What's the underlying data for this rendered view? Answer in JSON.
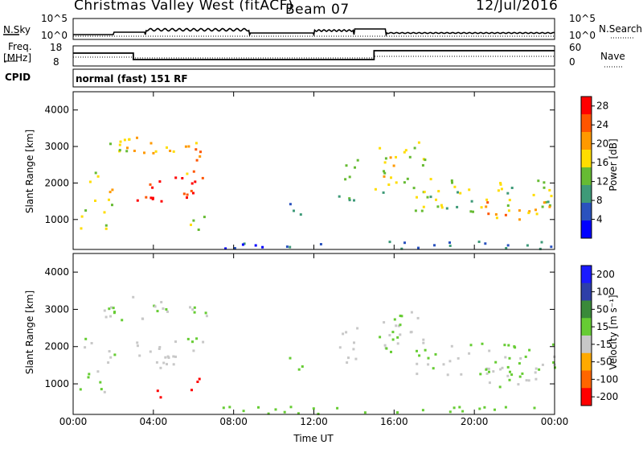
{
  "header": {
    "station": "Christmas Valley West (fitACF)",
    "beam": "Beam 07",
    "date": "12/Jul/2016"
  },
  "param_panels": {
    "nsky_label": "N.Sky",
    "nsky_ticks": [
      "10^5",
      "10^0"
    ],
    "nsearch_label": "N.Search",
    "nsearch_ticks": [
      "10^5",
      "10^0"
    ],
    "freq_label_1": "Freq.",
    "freq_label_2": "[MHz]",
    "freq_ticks": [
      "18",
      "8"
    ],
    "nave_label": "Nave",
    "nave_ticks": [
      "60",
      "0"
    ],
    "cpid_label": "CPID",
    "cpid_value": "normal (fast) 151 RF"
  },
  "colors": {
    "power_scale": [
      "#0000ff",
      "#2a52be",
      "#3e9a78",
      "#66bb33",
      "#ffdd00",
      "#ff9900",
      "#ff5500",
      "#ff0000"
    ],
    "velocity_scale": [
      "#1a1aff",
      "#2e3fa8",
      "#3a8a3a",
      "#66cc33",
      "#c8c8c8",
      "#ffaa00",
      "#ff6600",
      "#ff0000"
    ],
    "axis": "#000000"
  },
  "chart_data": [
    {
      "type": "heatmap",
      "name": "power",
      "ylabel": "Slant Range [km]",
      "yticks": [
        "4000",
        "3000",
        "2000",
        "1000"
      ],
      "ylim": [
        180,
        4500
      ],
      "xlim": [
        "00:00",
        "24:00"
      ],
      "colorbar_label": "Power [dB]",
      "colorbar_ticks": [
        "28",
        "24",
        "20",
        "16",
        "12",
        "8",
        "4"
      ],
      "colorbar_range": [
        0,
        30
      ],
      "regions": [
        {
          "t0": 0.2,
          "t1": 1.2,
          "r0": 1900,
          "r1": 2300,
          "v": 15
        },
        {
          "t0": 0.3,
          "t1": 1.6,
          "r0": 700,
          "r1": 1300,
          "v": 16
        },
        {
          "t0": 1.0,
          "t1": 2.1,
          "r0": 1300,
          "r1": 1900,
          "v": 18
        },
        {
          "t0": 1.3,
          "t1": 3.0,
          "r0": 2700,
          "r1": 3500,
          "v": 17
        },
        {
          "t0": 3.0,
          "t1": 5.1,
          "r0": 2700,
          "r1": 3300,
          "v": 18
        },
        {
          "t0": 3.0,
          "t1": 6.2,
          "r0": 1400,
          "r1": 2200,
          "v": 27
        },
        {
          "t0": 5.5,
          "t1": 6.8,
          "r0": 2000,
          "r1": 3100,
          "v": 22
        },
        {
          "t0": 5.8,
          "t1": 6.7,
          "r0": 600,
          "r1": 1200,
          "v": 14
        },
        {
          "t0": 7.0,
          "t1": 24.0,
          "r0": 180,
          "r1": 380,
          "v": 7
        },
        {
          "t0": 10.7,
          "t1": 11.4,
          "r0": 1100,
          "r1": 1700,
          "v": 10
        },
        {
          "t0": 13.2,
          "t1": 14.2,
          "r0": 1400,
          "r1": 2700,
          "v": 11
        },
        {
          "t0": 15.0,
          "t1": 16.0,
          "r0": 1700,
          "r1": 2300,
          "v": 13
        },
        {
          "t0": 15.2,
          "t1": 17.5,
          "r0": 1800,
          "r1": 3100,
          "v": 15
        },
        {
          "t0": 17.0,
          "t1": 24.0,
          "r0": 1200,
          "r1": 2100,
          "v": 14
        },
        {
          "t0": 20.5,
          "t1": 24.0,
          "r0": 900,
          "r1": 1500,
          "v": 21
        }
      ]
    },
    {
      "type": "heatmap",
      "name": "velocity",
      "ylabel": "Slant Range [km]",
      "yticks": [
        "4000",
        "3000",
        "2000",
        "1000"
      ],
      "xlabel": "Time UT",
      "xticks": [
        "00:00",
        "04:00",
        "08:00",
        "12:00",
        "16:00",
        "20:00",
        "00:00"
      ],
      "xlim": [
        "00:00",
        "24:00"
      ],
      "ylim": [
        180,
        4500
      ],
      "colorbar_label": "Velocity [m s⁻¹]",
      "colorbar_ticks": [
        "200",
        "100",
        "50",
        "15",
        "-15",
        "-50",
        "-100",
        "-200"
      ],
      "colorbar_range": [
        -250,
        250
      ],
      "regions": [
        {
          "t0": 0.2,
          "t1": 1.2,
          "r0": 1900,
          "r1": 2300,
          "v": 0
        },
        {
          "t0": 0.3,
          "t1": 1.6,
          "r0": 700,
          "r1": 1300,
          "v": 5
        },
        {
          "t0": 1.0,
          "t1": 2.1,
          "r0": 1300,
          "r1": 1900,
          "v": 0
        },
        {
          "t0": 1.3,
          "t1": 3.0,
          "r0": 2700,
          "r1": 3500,
          "v": 0
        },
        {
          "t0": 3.0,
          "t1": 5.1,
          "r0": 2700,
          "r1": 3300,
          "v": -5
        },
        {
          "t0": 3.0,
          "t1": 6.2,
          "r0": 1400,
          "r1": 2200,
          "v": -40
        },
        {
          "t0": 5.5,
          "t1": 6.8,
          "r0": 2000,
          "r1": 3100,
          "v": 0
        },
        {
          "t0": 4.0,
          "t1": 5.0,
          "r0": 600,
          "r1": 900,
          "v": -200
        },
        {
          "t0": 5.8,
          "t1": 6.7,
          "r0": 800,
          "r1": 1200,
          "v": -200
        },
        {
          "t0": 7.0,
          "t1": 24.0,
          "r0": 180,
          "r1": 380,
          "v": 40
        },
        {
          "t0": 10.7,
          "t1": 11.4,
          "r0": 1100,
          "r1": 1700,
          "v": 40
        },
        {
          "t0": 13.2,
          "t1": 14.2,
          "r0": 1400,
          "r1": 2700,
          "v": -20
        },
        {
          "t0": 15.0,
          "t1": 16.0,
          "r0": 1700,
          "r1": 2300,
          "v": 0
        },
        {
          "t0": 15.2,
          "t1": 17.5,
          "r0": 1800,
          "r1": 3100,
          "v": 0
        },
        {
          "t0": 17.0,
          "t1": 24.0,
          "r0": 1200,
          "r1": 2100,
          "v": 0
        },
        {
          "t0": 20.5,
          "t1": 24.0,
          "r0": 900,
          "r1": 1500,
          "v": 0
        }
      ]
    }
  ]
}
